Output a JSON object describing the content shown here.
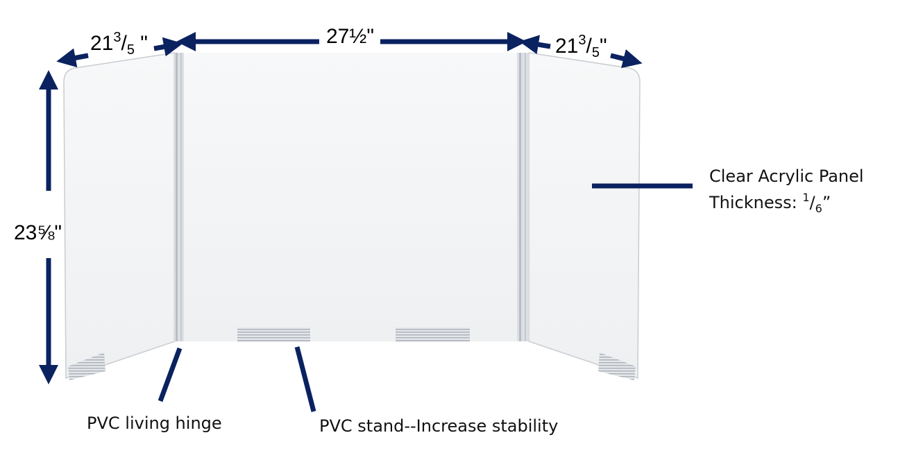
{
  "colors": {
    "annotation": "#0b2260",
    "panel": "#f4f5f7",
    "hinge": "#d6d9de"
  },
  "dimensions": {
    "left_width": {
      "whole": "21",
      "num": "3",
      "den": "5",
      "unit": " \""
    },
    "center_width": "27½\"",
    "right_width": {
      "whole": "21",
      "num": "3",
      "den": "5",
      "unit": "\""
    },
    "height": "23⅝\""
  },
  "callouts": {
    "panel_line1": "Clear Acrylic Panel",
    "panel_line2_prefix": "Thickness: ",
    "panel_thickness_num": "1",
    "panel_thickness_den": "6",
    "panel_thickness_unit": "”",
    "hinge": "PVC living hinge",
    "stand": "PVC stand--Increase stability"
  }
}
